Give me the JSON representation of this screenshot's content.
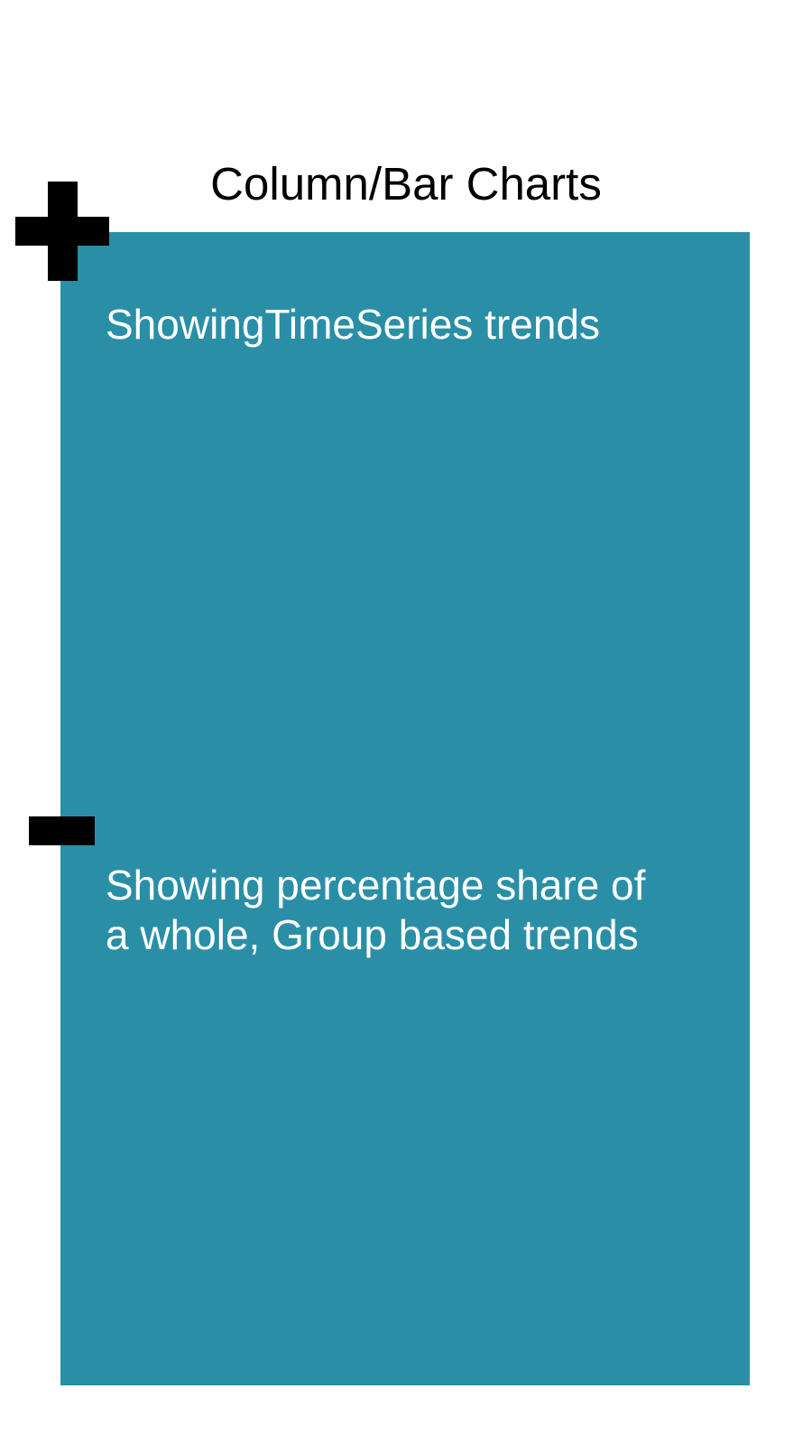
{
  "title": "Column/Bar Charts",
  "panel": {
    "color": "#2a8fa6"
  },
  "pros": {
    "icon": "plus-icon",
    "text": "ShowingTimeSeries trends"
  },
  "cons": {
    "icon": "minus-icon",
    "line1": "Showing percentage share of",
    "line2": "a whole, Group based trends"
  }
}
